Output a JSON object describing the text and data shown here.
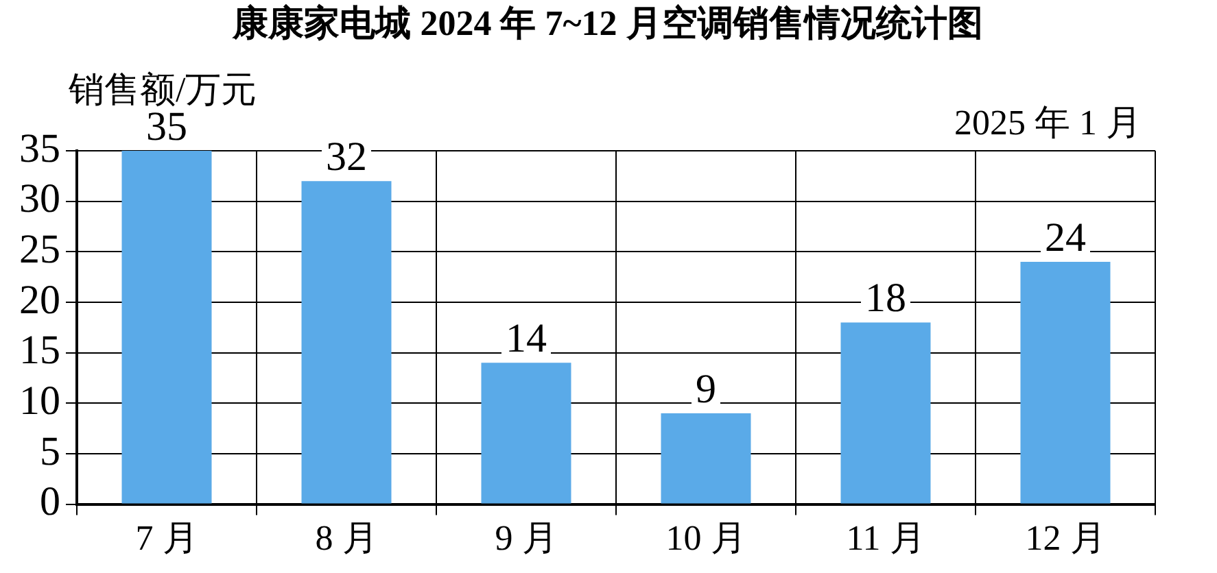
{
  "chart_data": {
    "type": "bar",
    "title": "康康家电城 2024 年 7~12 月空调销售情况统计图",
    "ylabel": "销售额/万元",
    "annotations": [
      "2025 年 1 月"
    ],
    "categories": [
      "7 月",
      "8 月",
      "9 月",
      "10 月",
      "11 月",
      "12 月"
    ],
    "values": [
      35,
      32,
      14,
      9,
      18,
      24
    ],
    "color": "#5aaae8",
    "ylim": [
      0,
      35
    ],
    "yticks": [
      0,
      5,
      10,
      15,
      20,
      25,
      30,
      35
    ],
    "grid": true,
    "data_labels": true
  }
}
